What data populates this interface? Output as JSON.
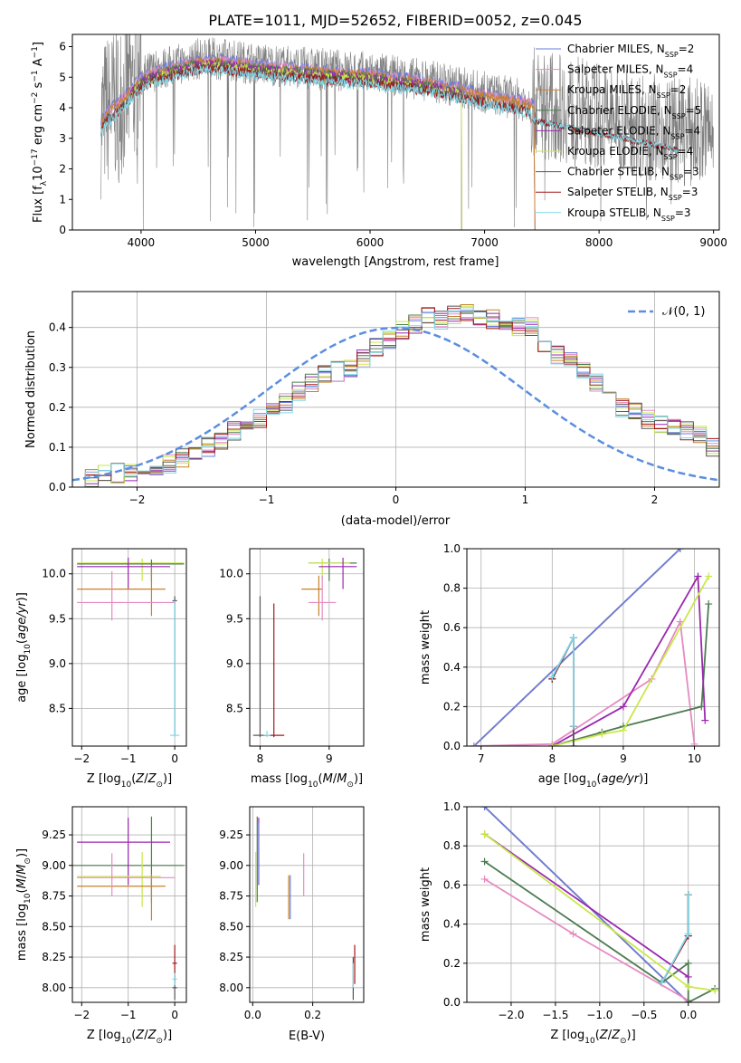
{
  "figure_title": "PLATE=1011, MJD=52652, FIBERID=0052, z=0.045",
  "colors": {
    "Chabrier MILES": "#6a7ddc",
    "Salpeter MILES": "#e68ac2",
    "Kroupa MILES": "#c6822a",
    "Chabrier ELODIE": "#4d7c50",
    "Salpeter ELODIE": "#9b27b0",
    "Kroupa ELODIE": "#c8e84a",
    "Chabrier STELIB": "#555555",
    "Salpeter STELIB": "#a01818",
    "Kroupa STELIB": "#7fd8e8",
    "data": "#808080",
    "normal": "#5b8ee0"
  },
  "chart_data": [
    {
      "type": "line",
      "panel": "spectrum",
      "xlabel": "wavelength [Angstrom, rest frame]",
      "ylabel": "Flux [f_λ 10^-17 erg cm^-2 s^-1 A^-1]",
      "xlim": [
        3400,
        9050
      ],
      "ylim": [
        0,
        6.4
      ],
      "xticks": [
        4000,
        5000,
        6000,
        7000,
        8000,
        9000
      ],
      "yticks": [
        0,
        1,
        2,
        3,
        4,
        5,
        6
      ],
      "grid": false,
      "legend_position": "right",
      "legend": [
        {
          "label": "Chabrier MILES, N_SSP=2",
          "main": "Chabrier MILES, N",
          "sub": "SSP",
          "tail": "=2"
        },
        {
          "label": "Salpeter MILES, N_SSP=4",
          "main": "Salpeter MILES, N",
          "sub": "SSP",
          "tail": "=4"
        },
        {
          "label": "Kroupa MILES, N_SSP=2",
          "main": "Kroupa MILES, N",
          "sub": "SSP",
          "tail": "=2"
        },
        {
          "label": "Chabrier ELODIE, N_SSP=5",
          "main": "Chabrier ELODIE, N",
          "sub": "SSP",
          "tail": "=5"
        },
        {
          "label": "Salpeter ELODIE, N_SSP=4",
          "main": "Salpeter ELODIE, N",
          "sub": "SSP",
          "tail": "=4"
        },
        {
          "label": "Kroupa ELODIE, N_SSP=4",
          "main": "Kroupa ELODIE, N",
          "sub": "SSP",
          "tail": "=4"
        },
        {
          "label": "Chabrier STELIB, N_SSP=3",
          "main": "Chabrier STELIB, N",
          "sub": "SSP",
          "tail": "=3"
        },
        {
          "label": "Salpeter STELIB, N_SSP=3",
          "main": "Salpeter STELIB, N",
          "sub": "SSP",
          "tail": "=3"
        },
        {
          "label": "Kroupa STELIB, N_SSP=3",
          "main": "Kroupa STELIB, N",
          "sub": "SSP",
          "tail": "=3"
        }
      ],
      "data_range": [
        3650,
        9000
      ],
      "model_ranges": {
        "MILES": [
          3650,
          7430
        ],
        "ELODIE": [
          3900,
          6800
        ],
        "STELIB": [
          3650,
          8700
        ]
      },
      "continuum": {
        "x": [
          3650,
          3700,
          3800,
          3900,
          4000,
          4100,
          4300,
          4500,
          4700,
          5000,
          5300,
          5600,
          6000,
          6500,
          7000,
          7400,
          7800,
          8200,
          8600,
          8700
        ],
        "y": [
          3.6,
          3.9,
          4.2,
          4.6,
          5.0,
          5.2,
          5.4,
          5.6,
          5.6,
          5.45,
          5.35,
          5.25,
          5.15,
          4.9,
          4.5,
          4.2,
          3.9,
          3.6,
          3.3,
          3.2
        ]
      }
    },
    {
      "type": "step",
      "panel": "residual_histogram",
      "xlabel": "(data-model)/error",
      "ylabel": "Normed distribution",
      "xlim": [
        -2.5,
        2.5
      ],
      "ylim": [
        0,
        0.49
      ],
      "xticks": [
        -2,
        -1,
        0,
        1,
        2
      ],
      "yticks": [
        0.0,
        0.1,
        0.2,
        0.3,
        0.4
      ],
      "grid": true,
      "legend": [
        {
          "label": "N(0,1)",
          "style": "dashed"
        }
      ],
      "bin_width": 0.1,
      "bin_start": -2.5,
      "base": [
        0.02,
        0.025,
        0.03,
        0.035,
        0.04,
        0.05,
        0.055,
        0.06,
        0.075,
        0.09,
        0.1,
        0.12,
        0.14,
        0.15,
        0.17,
        0.2,
        0.21,
        0.24,
        0.26,
        0.28,
        0.29,
        0.3,
        0.32,
        0.35,
        0.37,
        0.39,
        0.41,
        0.43,
        0.42,
        0.43,
        0.44,
        0.42,
        0.42,
        0.42,
        0.4,
        0.4,
        0.36,
        0.33,
        0.32,
        0.29,
        0.26,
        0.23,
        0.2,
        0.19,
        0.17,
        0.16,
        0.15,
        0.14,
        0.13,
        0.1,
        0.08,
        0.07,
        0.06,
        0.05,
        0.04,
        0.03,
        0.025,
        0.02
      ],
      "normal_curve": {
        "mean": 0,
        "sigma": 1
      }
    },
    {
      "type": "errorbar",
      "panel": "age_vs_Z",
      "xlabel": "Z [log10(Z/Z⊙)]",
      "ylabel": "age [log10(age/yr)]",
      "xlim": [
        -2.2,
        0.25
      ],
      "ylim": [
        8.08,
        10.28
      ],
      "xticks": [
        -2,
        -1,
        0
      ],
      "yticks": [
        8.5,
        9.0,
        9.5,
        10.0
      ],
      "grid": true,
      "points": [
        {
          "model": "Kroupa ELODIE",
          "x": -0.7,
          "y": 10.12,
          "xerr": [
            1.4,
            0.9
          ],
          "yerr": [
            0.2,
            0.05
          ]
        },
        {
          "model": "Chabrier ELODIE",
          "x": -0.5,
          "y": 10.11,
          "xerr": [
            1.6,
            0.7
          ],
          "yerr": [
            0.2,
            0.05
          ]
        },
        {
          "model": "Salpeter ELODIE",
          "x": -1.0,
          "y": 10.08,
          "xerr": [
            1.1,
            0.9
          ],
          "yerr": [
            0.25,
            0.1
          ]
        },
        {
          "model": "Kroupa MILES",
          "x": -0.5,
          "y": 9.83,
          "xerr": [
            1.6,
            0.3
          ],
          "yerr": [
            0.3,
            0.25
          ]
        },
        {
          "model": "Salpeter MILES",
          "x": -1.35,
          "y": 9.68,
          "xerr": [
            0.75,
            1.35
          ],
          "yerr": [
            0.2,
            0.35
          ]
        },
        {
          "model": "Chabrier STELIB",
          "x": 0.0,
          "y": 9.7,
          "xerr": [
            0.05,
            0.05
          ],
          "yerr": [
            1.5,
            0.05
          ]
        },
        {
          "model": "Kroupa STELIB",
          "x": 0.0,
          "y": 8.2,
          "xerr": [
            0.1,
            0.1
          ],
          "yerr": [
            0.02,
            1.5
          ]
        }
      ]
    },
    {
      "type": "errorbar",
      "panel": "age_vs_mass",
      "xlabel": "mass [log10(M/M⊙)]",
      "ylabel": "",
      "xlim": [
        7.85,
        9.5
      ],
      "ylim": [
        8.08,
        10.28
      ],
      "xticks": [
        8,
        9
      ],
      "yticks": [
        8.5,
        9.0,
        9.5,
        10.0
      ],
      "grid": true,
      "points": [
        {
          "model": "Chabrier ELODIE",
          "x": 9.0,
          "y": 10.12,
          "xerr": [
            0.3,
            0.4
          ],
          "yerr": [
            0.2,
            0.05
          ]
        },
        {
          "model": "Kroupa ELODIE",
          "x": 8.9,
          "y": 10.12,
          "xerr": [
            0.2,
            0.4
          ],
          "yerr": [
            0.2,
            0.05
          ]
        },
        {
          "model": "Salpeter ELODIE",
          "x": 9.2,
          "y": 10.08,
          "xerr": [
            0.35,
            0.2
          ],
          "yerr": [
            0.25,
            0.1
          ]
        },
        {
          "model": "Kroupa MILES",
          "x": 8.85,
          "y": 9.83,
          "xerr": [
            0.25,
            0.05
          ],
          "yerr": [
            0.3,
            0.15
          ]
        },
        {
          "model": "Salpeter MILES",
          "x": 8.9,
          "y": 9.68,
          "xerr": [
            0.2,
            0.2
          ],
          "yerr": [
            0.2,
            0.3
          ]
        },
        {
          "model": "Chabrier STELIB",
          "x": 8.0,
          "y": 8.2,
          "xerr": [
            0.1,
            0.1
          ],
          "yerr": [
            0.02,
            1.55
          ]
        },
        {
          "model": "Salpeter STELIB",
          "x": 8.2,
          "y": 8.2,
          "xerr": [
            0.15,
            0.15
          ],
          "yerr": [
            0.02,
            1.47
          ]
        },
        {
          "model": "Kroupa STELIB",
          "x": 8.1,
          "y": 8.2,
          "xerr": [
            0.05,
            0.05
          ],
          "yerr": [
            0.02,
            0.05
          ]
        }
      ]
    },
    {
      "type": "line",
      "panel": "mass_weight_vs_age",
      "xlabel": "age [log10(age/yr)]",
      "ylabel": "mass weight",
      "xlim": [
        6.8,
        10.35
      ],
      "ylim": [
        0,
        1.0
      ],
      "xticks": [
        7,
        8,
        9,
        10
      ],
      "yticks": [
        0.0,
        0.2,
        0.4,
        0.6,
        0.8,
        1.0
      ],
      "grid": true,
      "series": [
        {
          "model": "Kroupa MILES",
          "x": [
            6.9,
            9.8
          ],
          "y": [
            0.0,
            1.0
          ]
        },
        {
          "model": "Chabrier MILES",
          "x": [
            6.9,
            9.8
          ],
          "y": [
            0.0,
            1.0
          ]
        },
        {
          "model": "Salpeter MILES",
          "x": [
            6.9,
            8.0,
            9.4,
            9.8,
            10.0
          ],
          "y": [
            0.0,
            0.01,
            0.34,
            0.63,
            0.01
          ]
        },
        {
          "model": "Chabrier ELODIE",
          "x": [
            8.0,
            8.7,
            9.0,
            10.1,
            10.2
          ],
          "y": [
            0.0,
            0.07,
            0.1,
            0.2,
            0.72
          ]
        },
        {
          "model": "Salpeter ELODIE",
          "x": [
            8.0,
            9.0,
            10.05,
            10.15
          ],
          "y": [
            0.0,
            0.2,
            0.86,
            0.13
          ]
        },
        {
          "model": "Kroupa ELODIE",
          "x": [
            8.0,
            8.7,
            9.0,
            10.2
          ],
          "y": [
            0.0,
            0.06,
            0.08,
            0.86
          ]
        },
        {
          "model": "Chabrier STELIB",
          "x": [
            8.0,
            8.3,
            8.3,
            8.3
          ],
          "y": [
            0.34,
            0.55,
            0.1,
            0.0
          ]
        },
        {
          "model": "Salpeter STELIB",
          "x": [
            8.0,
            8.3,
            8.3
          ],
          "y": [
            0.34,
            0.55,
            0.1
          ]
        },
        {
          "model": "Kroupa STELIB",
          "x": [
            8.0,
            8.3,
            8.3
          ],
          "y": [
            0.35,
            0.55,
            0.1
          ]
        }
      ]
    },
    {
      "type": "errorbar",
      "panel": "mass_vs_Z",
      "xlabel": "Z [log10(Z/Z⊙)]",
      "ylabel": "mass [log10(M/M⊙)]",
      "xlim": [
        -2.2,
        0.25
      ],
      "ylim": [
        7.88,
        9.48
      ],
      "xticks": [
        -2,
        -1,
        0
      ],
      "yticks": [
        8.0,
        8.25,
        8.5,
        8.75,
        9.0,
        9.25
      ],
      "grid": true,
      "points": [
        {
          "model": "Chabrier ELODIE",
          "x": -0.5,
          "y": 9.0,
          "xerr": [
            1.7,
            0.7
          ],
          "yerr": [
            0.3,
            0.4
          ]
        },
        {
          "model": "Salpeter ELODIE",
          "x": -1.0,
          "y": 9.19,
          "xerr": [
            1.1,
            0.9
          ],
          "yerr": [
            0.35,
            0.2
          ]
        },
        {
          "model": "Kroupa ELODIE",
          "x": -0.7,
          "y": 8.91,
          "xerr": [
            1.4,
            0.4
          ],
          "yerr": [
            0.25,
            0.2
          ]
        },
        {
          "model": "Kroupa MILES",
          "x": -0.5,
          "y": 8.83,
          "xerr": [
            1.6,
            0.3
          ],
          "yerr": [
            0.28,
            0.1
          ]
        },
        {
          "model": "Salpeter MILES",
          "x": -1.35,
          "y": 8.9,
          "xerr": [
            0.75,
            1.35
          ],
          "yerr": [
            0.15,
            0.2
          ]
        },
        {
          "model": "Chabrier STELIB",
          "x": 0.0,
          "y": 8.0,
          "xerr": [
            0.05,
            0.05
          ],
          "yerr": [
            0.1,
            0.1
          ]
        },
        {
          "model": "Salpeter STELIB",
          "x": 0.0,
          "y": 8.2,
          "xerr": [
            0.05,
            0.05
          ],
          "yerr": [
            0.15,
            0.15
          ]
        },
        {
          "model": "Kroupa STELIB",
          "x": 0.0,
          "y": 8.07,
          "xerr": [
            0.05,
            0.05
          ],
          "yerr": [
            0.05,
            0.05
          ]
        }
      ]
    },
    {
      "type": "errorbar",
      "panel": "mass_vs_ebv",
      "xlabel": "E(B-V)",
      "ylabel": "",
      "xlim": [
        -0.01,
        0.37
      ],
      "ylim": [
        7.88,
        9.48
      ],
      "xticks": [
        0.0,
        0.2
      ],
      "yticks": [
        8.0,
        8.25,
        8.5,
        8.75,
        9.0,
        9.25
      ],
      "grid": true,
      "points": [
        {
          "model": "Chabrier ELODIE",
          "x": 0.015,
          "y": 9.0,
          "xerr": [
            0,
            0
          ],
          "yerr": [
            0.3,
            0.4
          ]
        },
        {
          "model": "Salpeter ELODIE",
          "x": 0.02,
          "y": 9.19,
          "xerr": [
            0,
            0
          ],
          "yerr": [
            0.35,
            0.2
          ]
        },
        {
          "model": "Kroupa ELODIE",
          "x": 0.01,
          "y": 8.91,
          "xerr": [
            0,
            0
          ],
          "yerr": [
            0.25,
            0.2
          ]
        },
        {
          "model": "Chabrier MILES",
          "x": 0.02,
          "y": 9.1,
          "xerr": [
            0,
            0
          ],
          "yerr": [
            0.25,
            0.25
          ]
        },
        {
          "model": "Kroupa MILES",
          "x": 0.12,
          "y": 8.74,
          "xerr": [
            0,
            0
          ],
          "yerr": [
            0.18,
            0.18
          ]
        },
        {
          "model": "Chabrier MILES",
          "x": 0.125,
          "y": 8.74,
          "xerr": [
            0,
            0
          ],
          "yerr": [
            0.18,
            0.18
          ]
        },
        {
          "model": "Salpeter MILES",
          "x": 0.17,
          "y": 8.95,
          "xerr": [
            0,
            0
          ],
          "yerr": [
            0.2,
            0.15
          ]
        },
        {
          "model": "Chabrier STELIB",
          "x": 0.335,
          "y": 8.05,
          "xerr": [
            0,
            0
          ],
          "yerr": [
            0.15,
            0.2
          ]
        },
        {
          "model": "Salpeter STELIB",
          "x": 0.34,
          "y": 8.15,
          "xerr": [
            0,
            0
          ],
          "yerr": [
            0.12,
            0.2
          ]
        },
        {
          "model": "Kroupa STELIB",
          "x": 0.335,
          "y": 8.1,
          "xerr": [
            0,
            0
          ],
          "yerr": [
            0.1,
            0.1
          ]
        }
      ]
    },
    {
      "type": "line",
      "panel": "mass_weight_vs_Z",
      "xlabel": "Z [log10(Z/Z⊙)]",
      "ylabel": "mass weight",
      "xlim": [
        -2.5,
        0.35
      ],
      "ylim": [
        0,
        1.0
      ],
      "xticks": [
        -2.0,
        -1.5,
        -1.0,
        -0.5,
        0.0
      ],
      "yticks": [
        0.0,
        0.2,
        0.4,
        0.6,
        0.8,
        1.0
      ],
      "grid": true,
      "series": [
        {
          "model": "Kroupa MILES",
          "x": [
            -2.3,
            0.0
          ],
          "y": [
            1.0,
            0.0
          ]
        },
        {
          "model": "Chabrier MILES",
          "x": [
            -2.3,
            0.0
          ],
          "y": [
            1.0,
            0.0
          ]
        },
        {
          "model": "Salpeter MILES",
          "x": [
            -2.3,
            -1.3,
            0.0
          ],
          "y": [
            0.63,
            0.35,
            0.01
          ]
        },
        {
          "model": "Chabrier ELODIE",
          "x": [
            -2.3,
            -0.3,
            0.0,
            0.0,
            0.3
          ],
          "y": [
            0.72,
            0.1,
            0.2,
            0.0,
            0.07
          ]
        },
        {
          "model": "Salpeter ELODIE",
          "x": [
            -2.3,
            0.0
          ],
          "y": [
            0.86,
            0.13
          ]
        },
        {
          "model": "Kroupa ELODIE",
          "x": [
            -2.3,
            0.0,
            0.3
          ],
          "y": [
            0.86,
            0.08,
            0.06
          ]
        },
        {
          "model": "Chabrier STELIB",
          "x": [
            -0.3,
            0.0,
            0.0,
            0.0
          ],
          "y": [
            0.1,
            0.34,
            0.55,
            0.34
          ]
        },
        {
          "model": "Salpeter STELIB",
          "x": [
            -0.3,
            0.0,
            0.0
          ],
          "y": [
            0.1,
            0.34,
            0.55
          ]
        },
        {
          "model": "Kroupa STELIB",
          "x": [
            -0.3,
            0.0,
            0.0
          ],
          "y": [
            0.1,
            0.35,
            0.55
          ]
        }
      ]
    }
  ]
}
